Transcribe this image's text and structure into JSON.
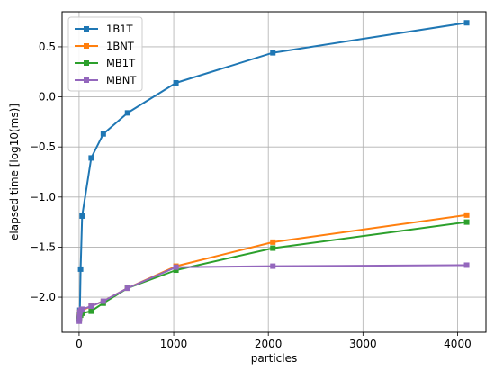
{
  "chart_data": {
    "type": "line",
    "title": "",
    "xlabel": "particles",
    "ylabel": "elapsed time [log10(ms)]",
    "xlim": [
      -180,
      4300
    ],
    "ylim": [
      -2.35,
      0.85
    ],
    "xticks": [
      0,
      1000,
      2000,
      3000,
      4000
    ],
    "xtick_labels": [
      "0",
      "1000",
      "2000",
      "3000",
      "4000"
    ],
    "yticks": [
      0.5,
      0.0,
      -0.5,
      -1.0,
      -1.5,
      -2.0
    ],
    "ytick_labels": [
      "0.5",
      "0.0",
      "−0.5",
      "−1.0",
      "−1.5",
      "−2.0"
    ],
    "grid": true,
    "legend_position": "top-left",
    "x": [
      2,
      4,
      8,
      16,
      32,
      128,
      256,
      512,
      1024,
      2048,
      4096
    ],
    "series": [
      {
        "name": "1B1T",
        "color": "#1f77b4",
        "marker": "square",
        "values": [
          -2.21,
          -2.17,
          -2.13,
          -1.72,
          -1.19,
          -0.61,
          -0.37,
          -0.16,
          0.14,
          0.44,
          0.74
        ]
      },
      {
        "name": "1BNT",
        "color": "#ff7f0e",
        "marker": "square",
        "values": [
          -2.22,
          -2.19,
          -2.15,
          -2.17,
          -2.13,
          -2.09,
          -2.04,
          -1.91,
          -1.69,
          -1.45,
          -1.18
        ]
      },
      {
        "name": "MB1T",
        "color": "#2ca02c",
        "marker": "square",
        "values": [
          -2.22,
          -2.2,
          -2.17,
          -2.18,
          -2.16,
          -2.14,
          -2.06,
          -1.91,
          -1.73,
          -1.51,
          -1.25
        ]
      },
      {
        "name": "MBNT",
        "color": "#9467bd",
        "marker": "square",
        "values": [
          -2.24,
          -2.2,
          -2.15,
          -2.13,
          -2.12,
          -2.09,
          -2.04,
          -1.91,
          -1.7,
          -1.69,
          -1.68
        ]
      }
    ]
  }
}
